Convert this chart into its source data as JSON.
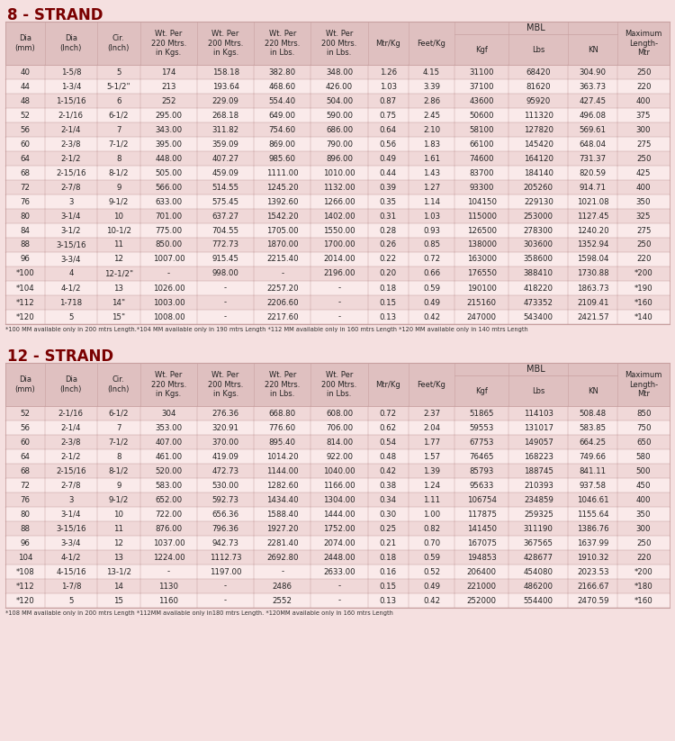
{
  "title1": "8 - STRAND",
  "title2": "12 - STRAND",
  "bg_color": "#f5e0e0",
  "header_bg": "#dfc0c0",
  "row_even": "#f0d8d8",
  "row_odd": "#faeaea",
  "border_color": "#c8a0a0",
  "title_color": "#7a0000",
  "text_color": "#222222",
  "footnote_color": "#333333",
  "footnote1": "*100 MM available only in 200 mtrs Length.*104 MM available only in 190 mtrs Length *112 MM available only in 160 mtrs Length *120 MM available only in 140 mtrs Length",
  "footnote2": "*108 MM available only in 200 mtrs Length *112MM available only in180 mtrs Length. *120MM available only in 160 mtrs Length",
  "col_headers": [
    "Dia\n(mm)",
    "Dia\n(Inch)",
    "Cir.\n(Inch)",
    "Wt. Per\n220 Mtrs.\nin Kgs.",
    "Wt. Per\n200 Mtrs.\nin Kgs.",
    "Wt. Per\n220 Mtrs.\nin Lbs.",
    "Wt. Per\n200 Mtrs.\nin Lbs.",
    "Mtr/Kg",
    "Feet/Kg",
    "Kgf",
    "Lbs",
    "KN",
    "Maximum\nLength-\nMtr"
  ],
  "mbl_cols": [
    9,
    10,
    11
  ],
  "strand8_rows": [
    [
      "40",
      "1-5/8",
      "5",
      "174",
      "158.18",
      "382.80",
      "348.00",
      "1.26",
      "4.15",
      "31100",
      "68420",
      "304.90",
      "250"
    ],
    [
      "44",
      "1-3/4",
      "5-1/2\"",
      "213",
      "193.64",
      "468.60",
      "426.00",
      "1.03",
      "3.39",
      "37100",
      "81620",
      "363.73",
      "220"
    ],
    [
      "48",
      "1-15/16",
      "6",
      "252",
      "229.09",
      "554.40",
      "504.00",
      "0.87",
      "2.86",
      "43600",
      "95920",
      "427.45",
      "400"
    ],
    [
      "52",
      "2-1/16",
      "6-1/2",
      "295.00",
      "268.18",
      "649.00",
      "590.00",
      "0.75",
      "2.45",
      "50600",
      "111320",
      "496.08",
      "375"
    ],
    [
      "56",
      "2-1/4",
      "7",
      "343.00",
      "311.82",
      "754.60",
      "686.00",
      "0.64",
      "2.10",
      "58100",
      "127820",
      "569.61",
      "300"
    ],
    [
      "60",
      "2-3/8",
      "7-1/2",
      "395.00",
      "359.09",
      "869.00",
      "790.00",
      "0.56",
      "1.83",
      "66100",
      "145420",
      "648.04",
      "275"
    ],
    [
      "64",
      "2-1/2",
      "8",
      "448.00",
      "407.27",
      "985.60",
      "896.00",
      "0.49",
      "1.61",
      "74600",
      "164120",
      "731.37",
      "250"
    ],
    [
      "68",
      "2-15/16",
      "8-1/2",
      "505.00",
      "459.09",
      "1111.00",
      "1010.00",
      "0.44",
      "1.43",
      "83700",
      "184140",
      "820.59",
      "425"
    ],
    [
      "72",
      "2-7/8",
      "9",
      "566.00",
      "514.55",
      "1245.20",
      "1132.00",
      "0.39",
      "1.27",
      "93300",
      "205260",
      "914.71",
      "400"
    ],
    [
      "76",
      "3",
      "9-1/2",
      "633.00",
      "575.45",
      "1392.60",
      "1266.00",
      "0.35",
      "1.14",
      "104150",
      "229130",
      "1021.08",
      "350"
    ],
    [
      "80",
      "3-1/4",
      "10",
      "701.00",
      "637.27",
      "1542.20",
      "1402.00",
      "0.31",
      "1.03",
      "115000",
      "253000",
      "1127.45",
      "325"
    ],
    [
      "84",
      "3-1/2",
      "10-1/2",
      "775.00",
      "704.55",
      "1705.00",
      "1550.00",
      "0.28",
      "0.93",
      "126500",
      "278300",
      "1240.20",
      "275"
    ],
    [
      "88",
      "3-15/16",
      "11",
      "850.00",
      "772.73",
      "1870.00",
      "1700.00",
      "0.26",
      "0.85",
      "138000",
      "303600",
      "1352.94",
      "250"
    ],
    [
      "96",
      "3-3/4",
      "12",
      "1007.00",
      "915.45",
      "2215.40",
      "2014.00",
      "0.22",
      "0.72",
      "163000",
      "358600",
      "1598.04",
      "220"
    ],
    [
      "*100",
      "4",
      "12-1/2\"",
      "-",
      "998.00",
      "-",
      "2196.00",
      "0.20",
      "0.66",
      "176550",
      "388410",
      "1730.88",
      "*200"
    ],
    [
      "*104",
      "4-1/2",
      "13",
      "1026.00",
      "-",
      "2257.20",
      "-",
      "0.18",
      "0.59",
      "190100",
      "418220",
      "1863.73",
      "*190"
    ],
    [
      "*112",
      "1-718",
      "14\"",
      "1003.00",
      "-",
      "2206.60",
      "-",
      "0.15",
      "0.49",
      "215160",
      "473352",
      "2109.41",
      "*160"
    ],
    [
      "*120",
      "5",
      "15\"",
      "1008.00",
      "-",
      "2217.60",
      "-",
      "0.13",
      "0.42",
      "247000",
      "543400",
      "2421.57",
      "*140"
    ]
  ],
  "strand12_rows": [
    [
      "52",
      "2-1/16",
      "6-1/2",
      "304",
      "276.36",
      "668.80",
      "608.00",
      "0.72",
      "2.37",
      "51865",
      "114103",
      "508.48",
      "850"
    ],
    [
      "56",
      "2-1/4",
      "7",
      "353.00",
      "320.91",
      "776.60",
      "706.00",
      "0.62",
      "2.04",
      "59553",
      "131017",
      "583.85",
      "750"
    ],
    [
      "60",
      "2-3/8",
      "7-1/2",
      "407.00",
      "370.00",
      "895.40",
      "814.00",
      "0.54",
      "1.77",
      "67753",
      "149057",
      "664.25",
      "650"
    ],
    [
      "64",
      "2-1/2",
      "8",
      "461.00",
      "419.09",
      "1014.20",
      "922.00",
      "0.48",
      "1.57",
      "76465",
      "168223",
      "749.66",
      "580"
    ],
    [
      "68",
      "2-15/16",
      "8-1/2",
      "520.00",
      "472.73",
      "1144.00",
      "1040.00",
      "0.42",
      "1.39",
      "85793",
      "188745",
      "841.11",
      "500"
    ],
    [
      "72",
      "2-7/8",
      "9",
      "583.00",
      "530.00",
      "1282.60",
      "1166.00",
      "0.38",
      "1.24",
      "95633",
      "210393",
      "937.58",
      "450"
    ],
    [
      "76",
      "3",
      "9-1/2",
      "652.00",
      "592.73",
      "1434.40",
      "1304.00",
      "0.34",
      "1.11",
      "106754",
      "234859",
      "1046.61",
      "400"
    ],
    [
      "80",
      "3-1/4",
      "10",
      "722.00",
      "656.36",
      "1588.40",
      "1444.00",
      "0.30",
      "1.00",
      "117875",
      "259325",
      "1155.64",
      "350"
    ],
    [
      "88",
      "3-15/16",
      "11",
      "876.00",
      "796.36",
      "1927.20",
      "1752.00",
      "0.25",
      "0.82",
      "141450",
      "311190",
      "1386.76",
      "300"
    ],
    [
      "96",
      "3-3/4",
      "12",
      "1037.00",
      "942.73",
      "2281.40",
      "2074.00",
      "0.21",
      "0.70",
      "167075",
      "367565",
      "1637.99",
      "250"
    ],
    [
      "104",
      "4-1/2",
      "13",
      "1224.00",
      "1112.73",
      "2692.80",
      "2448.00",
      "0.18",
      "0.59",
      "194853",
      "428677",
      "1910.32",
      "220"
    ],
    [
      "*108",
      "4-15/16",
      "13-1/2",
      "-",
      "1197.00",
      "-",
      "2633.00",
      "0.16",
      "0.52",
      "206400",
      "454080",
      "2023.53",
      "*200"
    ],
    [
      "*112",
      "1-7/8",
      "14",
      "1130",
      "-",
      "2486",
      "-",
      "0.15",
      "0.49",
      "221000",
      "486200",
      "2166.67",
      "*180"
    ],
    [
      "*120",
      "5",
      "15",
      "1160",
      "-",
      "2552",
      "-",
      "0.13",
      "0.42",
      "252000",
      "554400",
      "2470.59",
      "*160"
    ]
  ],
  "col_widths_norm": [
    3.2,
    4.2,
    3.5,
    4.6,
    4.6,
    4.6,
    4.6,
    3.3,
    3.7,
    4.4,
    4.8,
    4.0,
    4.2
  ]
}
